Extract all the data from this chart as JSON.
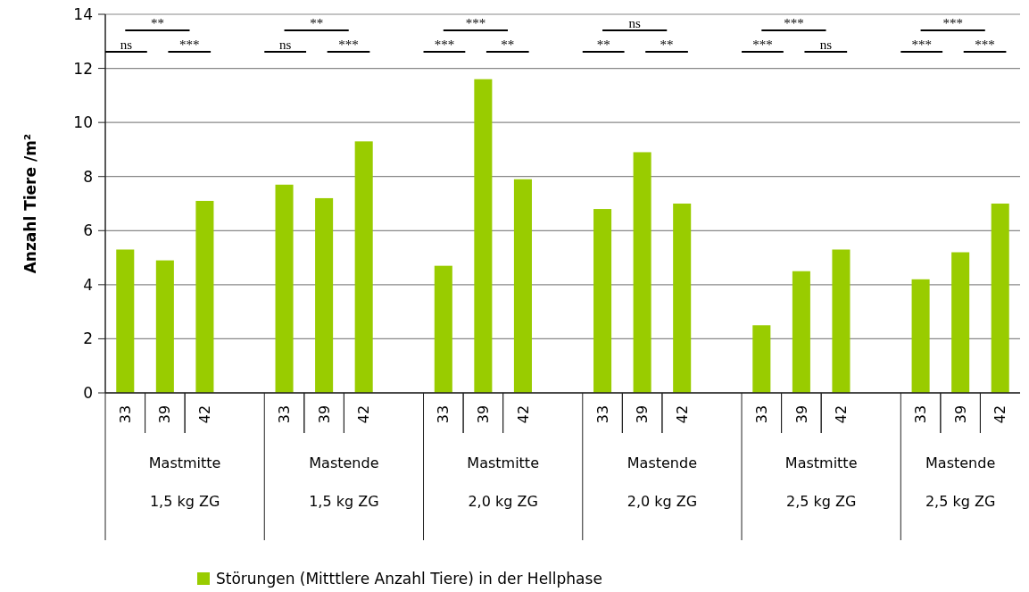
{
  "chart_data": {
    "type": "bar",
    "ylabel": "Anzahl Tiere /m²",
    "categories": [
      "33",
      "39",
      "42",
      null,
      "33",
      "39",
      "42",
      null,
      "33",
      "39",
      "42",
      null,
      "33",
      "39",
      "42",
      null,
      "33",
      "39",
      "42",
      null,
      "33",
      "39",
      "42"
    ],
    "series": [
      {
        "name": "Störungen (Mitttlere Anzahl Tiere) in der Hellphase",
        "color": "#99cc00",
        "values": [
          5.3,
          4.9,
          7.1,
          null,
          7.7,
          7.2,
          9.3,
          null,
          4.7,
          11.6,
          7.9,
          null,
          6.8,
          8.9,
          7.0,
          null,
          2.5,
          4.5,
          5.3,
          null,
          4.2,
          5.2,
          7.0
        ]
      }
    ],
    "ylim": [
      0,
      14
    ],
    "yticks": [
      0,
      2,
      4,
      6,
      8,
      10,
      12,
      14
    ],
    "grid": "y",
    "legend": "bottom",
    "annotations": [
      "**",
      "ns",
      "***",
      "Mastmitte",
      "1,5 kg ZG",
      "**",
      "ns",
      "***",
      "Mastende",
      "1,5 kg ZG",
      "***",
      "***",
      "**",
      "Mastmitte",
      "2,0 kg ZG",
      "ns",
      "**",
      "**",
      "Mastende",
      "2,0 kg ZG",
      "***",
      "***",
      "ns",
      "Mastmitte",
      "2,5 kg ZG",
      "***",
      "***",
      "***",
      "Mastende",
      "2,5 kg ZG"
    ]
  }
}
